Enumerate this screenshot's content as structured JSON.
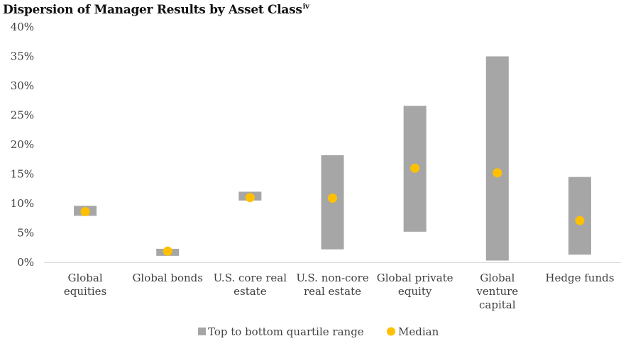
{
  "chart_data": {
    "type": "bar",
    "title": "Dispersion of Manager Results by Asset Class",
    "title_superscript": "iv",
    "xlabel": "",
    "ylabel": "",
    "ylim": [
      0,
      40
    ],
    "yticks": [
      "0%",
      "5%",
      "10%",
      "15%",
      "20%",
      "25%",
      "30%",
      "35%",
      "40%"
    ],
    "grid": false,
    "legend_position": "bottom",
    "categories": [
      [
        "Global",
        "equities"
      ],
      [
        "Global bonds"
      ],
      [
        "U.S. core real",
        "estate"
      ],
      [
        "U.S. non-core",
        "real estate"
      ],
      [
        "Global private",
        "equity"
      ],
      [
        "Global",
        "venture",
        "capital"
      ],
      [
        "Hedge funds"
      ]
    ],
    "series": [
      {
        "name": "Top to bottom quartile range",
        "kind": "floating-bar",
        "color": "#a6a6a6",
        "low": [
          7.9,
          1.1,
          10.5,
          2.2,
          5.2,
          0.3,
          1.3
        ],
        "high": [
          9.6,
          2.3,
          12.0,
          18.2,
          26.6,
          35.0,
          14.5
        ]
      },
      {
        "name": "Median",
        "kind": "marker",
        "color": "#ffc000",
        "values": [
          8.6,
          1.9,
          11.0,
          10.9,
          16.0,
          15.2,
          7.1
        ]
      }
    ]
  }
}
